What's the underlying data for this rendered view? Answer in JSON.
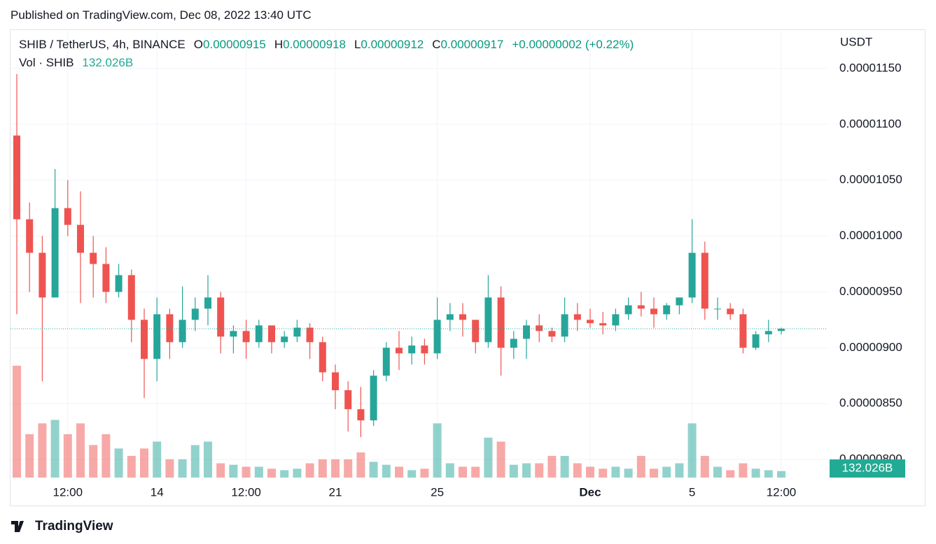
{
  "published": "Published on TradingView.com, Dec 08, 2022 13:40 UTC",
  "brand": "TradingView",
  "chart_data": {
    "type": "candlestick",
    "symbol": "SHIB / TetherUS, 4h, BINANCE",
    "legend_labels": {
      "open": "O",
      "high": "H",
      "low": "L",
      "close": "C"
    },
    "change": "+0.00000002 (+0.22%)",
    "volume_title": "Vol · SHIB",
    "y_unit": "USDT",
    "up_color": "#26a69a",
    "down_color": "#ef5350",
    "grid": true,
    "categories": [
      null,
      null,
      null,
      null,
      "12:00",
      null,
      null,
      null,
      null,
      null,
      null,
      "14",
      null,
      null,
      null,
      null,
      null,
      null,
      "12:00",
      null,
      null,
      null,
      null,
      null,
      null,
      "21",
      null,
      null,
      null,
      null,
      null,
      null,
      null,
      "25",
      null,
      null,
      null,
      null,
      null,
      null,
      null,
      null,
      null,
      null,
      null,
      "Dec",
      null,
      null,
      null,
      null,
      null,
      null,
      null,
      "5",
      null,
      null,
      null,
      null,
      null,
      null,
      "12:00"
    ],
    "open": [
      1.09e-05,
      1.015e-05,
      9.85e-06,
      9.45e-06,
      1.025e-05,
      1.01e-05,
      9.85e-06,
      9.75e-06,
      9.5e-06,
      9.65e-06,
      9.25e-06,
      8.9e-06,
      9.3e-06,
      9.05e-06,
      9.25e-06,
      9.35e-06,
      9.45e-06,
      9.1e-06,
      9.15e-06,
      9.05e-06,
      9.2e-06,
      9.05e-06,
      9.1e-06,
      9.18e-06,
      9.05e-06,
      8.78e-06,
      8.62e-06,
      8.45e-06,
      8.35e-06,
      8.75e-06,
      9e-06,
      8.95e-06,
      9.02e-06,
      8.95e-06,
      9.25e-06,
      9.3e-06,
      9.25e-06,
      9.05e-06,
      9.45e-06,
      9e-06,
      9.08e-06,
      9.2e-06,
      9.15e-06,
      9.1e-06,
      9.3e-06,
      9.25e-06,
      9.22e-06,
      9.2e-06,
      9.3e-06,
      9.38e-06,
      9.35e-06,
      9.3e-06,
      9.38e-06,
      9.45e-06,
      9.85e-06,
      9.35e-06,
      9.35e-06,
      9.3e-06,
      9e-06,
      9.12e-06,
      9.15e-06
    ],
    "high": [
      1.145e-05,
      1.03e-05,
      1e-05,
      1.06e-05,
      1.05e-05,
      1.04e-05,
      1e-05,
      9.9e-06,
      9.75e-06,
      9.7e-06,
      9.35e-06,
      9.45e-06,
      9.35e-06,
      9.55e-06,
      9.45e-06,
      9.65e-06,
      9.5e-06,
      9.2e-06,
      9.25e-06,
      9.25e-06,
      9.2e-06,
      9.15e-06,
      9.25e-06,
      9.22e-06,
      9.1e-06,
      8.85e-06,
      8.7e-06,
      8.65e-06,
      8.8e-06,
      9.05e-06,
      9.15e-06,
      9.1e-06,
      9.08e-06,
      9.45e-06,
      9.4e-06,
      9.4e-06,
      9.25e-06,
      9.65e-06,
      9.55e-06,
      9.15e-06,
      9.25e-06,
      9.3e-06,
      9.18e-06,
      9.45e-06,
      9.4e-06,
      9.35e-06,
      9.32e-06,
      9.35e-06,
      9.45e-06,
      9.5e-06,
      9.45e-06,
      9.4e-06,
      9.45e-06,
      1.015e-05,
      9.95e-06,
      9.45e-06,
      9.4e-06,
      9.35e-06,
      9.15e-06,
      9.25e-06,
      9.18e-06
    ],
    "low": [
      9.3e-06,
      9.5e-06,
      8.7e-06,
      9.45e-06,
      1e-05,
      9.4e-06,
      9.45e-06,
      9.4e-06,
      9.45e-06,
      9.05e-06,
      8.55e-06,
      8.7e-06,
      8.9e-06,
      9e-06,
      9.15e-06,
      9.2e-06,
      8.95e-06,
      8.95e-06,
      8.9e-06,
      9e-06,
      8.95e-06,
      9e-06,
      9.05e-06,
      8.9e-06,
      8.7e-06,
      8.45e-06,
      8.25e-06,
      8.2e-06,
      8.3e-06,
      8.7e-06,
      8.8e-06,
      8.85e-06,
      8.85e-06,
      8.9e-06,
      9.15e-06,
      9.1e-06,
      8.95e-06,
      9e-06,
      8.75e-06,
      8.9e-06,
      8.9e-06,
      9.05e-06,
      9.05e-06,
      9.05e-06,
      9.15e-06,
      9.18e-06,
      9.12e-06,
      9.15e-06,
      9.25e-06,
      9.28e-06,
      9.18e-06,
      9.25e-06,
      9.3e-06,
      9.4e-06,
      9.25e-06,
      9.25e-06,
      9.25e-06,
      8.95e-06,
      8.98e-06,
      9.05e-06,
      9.12e-06
    ],
    "close": [
      1.015e-05,
      9.85e-06,
      9.45e-06,
      1.025e-05,
      1.01e-05,
      9.85e-06,
      9.75e-06,
      9.5e-06,
      9.65e-06,
      9.25e-06,
      8.9e-06,
      9.3e-06,
      9.05e-06,
      9.25e-06,
      9.35e-06,
      9.45e-06,
      9.1e-06,
      9.15e-06,
      9.05e-06,
      9.2e-06,
      9.05e-06,
      9.1e-06,
      9.18e-06,
      9.05e-06,
      8.78e-06,
      8.62e-06,
      8.45e-06,
      8.35e-06,
      8.75e-06,
      9e-06,
      8.95e-06,
      9.02e-06,
      8.95e-06,
      9.25e-06,
      9.3e-06,
      9.25e-06,
      9.05e-06,
      9.45e-06,
      9e-06,
      9.08e-06,
      9.2e-06,
      9.15e-06,
      9.1e-06,
      9.3e-06,
      9.25e-06,
      9.22e-06,
      9.2e-06,
      9.3e-06,
      9.38e-06,
      9.35e-06,
      9.3e-06,
      9.38e-06,
      9.45e-06,
      9.85e-06,
      9.35e-06,
      9.35e-06,
      9.3e-06,
      9e-06,
      9.12e-06,
      9.15e-06,
      9.17e-06
    ],
    "volume": {
      "values": [
        2270,
        880,
        1100,
        1170,
        880,
        1100,
        660,
        880,
        590,
        440,
        590,
        730,
        370,
        370,
        660,
        730,
        290,
        260,
        220,
        220,
        180,
        150,
        180,
        290,
        370,
        370,
        370,
        510,
        320,
        260,
        220,
        150,
        180,
        1100,
        290,
        220,
        220,
        810,
        730,
        260,
        290,
        290,
        440,
        440,
        290,
        220,
        180,
        220,
        180,
        440,
        180,
        220,
        290,
        1100,
        440,
        220,
        150,
        290,
        180,
        150,
        132.026
      ],
      "last_label": "132.026B"
    },
    "ylim": [
      7.838e-06,
      1.185e-05
    ],
    "yticks": [
      {
        "value": 1.15e-05,
        "label": "0.00001150"
      },
      {
        "value": 1.1e-05,
        "label": "0.00001100"
      },
      {
        "value": 1.05e-05,
        "label": "0.00001050"
      },
      {
        "value": 1e-05,
        "label": "0.00001000"
      },
      {
        "value": 9.5e-06,
        "label": "0.00000950"
      },
      {
        "value": 9e-06,
        "label": "0.00000900"
      },
      {
        "value": 8.5e-06,
        "label": "0.00000850"
      },
      {
        "value": 8e-06,
        "label": "0.00000800"
      }
    ]
  }
}
